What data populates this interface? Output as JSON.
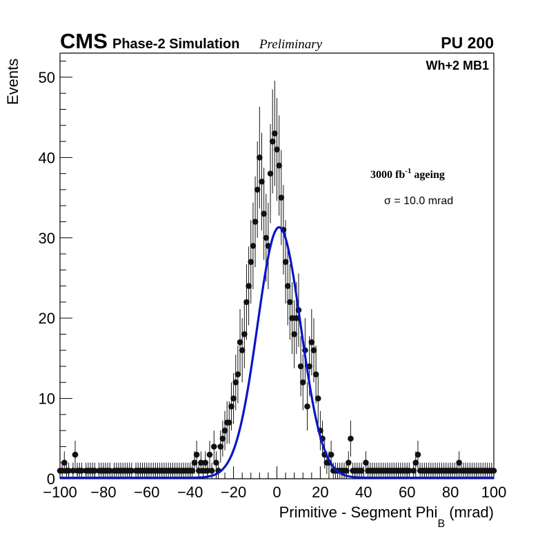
{
  "header": {
    "cms": "CMS",
    "subtitle": "Phase-2 Simulation",
    "preliminary": "Preliminary",
    "pileup": "PU 200",
    "chamber": "Wh+2 MB1"
  },
  "annotation": {
    "ageing_prefix": "3000 fb",
    "ageing_sup": "-1",
    "ageing_suffix": " ageing",
    "sigma_symbol": "σ",
    "sigma_text": " = 10.0 mrad"
  },
  "colors": {
    "fit": "#0a14c8",
    "marker": "#111111",
    "axis": "#000000"
  },
  "chart_data": {
    "type": "scatter",
    "title": "",
    "xlabel_main": "Primitive - Segment Phi",
    "xlabel_sub": "B",
    "xlabel_unit": " (mrad)",
    "ylabel": "Events",
    "xlim": [
      -100,
      100
    ],
    "ylim": [
      0,
      53
    ],
    "xticks": [
      -100,
      -80,
      -60,
      -40,
      -20,
      0,
      20,
      40,
      60,
      80,
      100
    ],
    "xtick_labels": [
      "−100",
      "−80",
      "−60",
      "−40",
      "−20",
      "0",
      "20",
      "40",
      "60",
      "80",
      "100"
    ],
    "yticks": [
      0,
      10,
      20,
      30,
      40,
      50
    ],
    "ytick_labels": [
      "0",
      "10",
      "20",
      "30",
      "40",
      "50"
    ],
    "bin_width": 1,
    "x": [
      -100,
      -99,
      -98,
      -97,
      -96,
      -95,
      -94,
      -93,
      -92,
      -91,
      -90,
      -89,
      -88,
      -87,
      -86,
      -85,
      -84,
      -83,
      -82,
      -81,
      -80,
      -79,
      -78,
      -77,
      -76,
      -75,
      -74,
      -73,
      -72,
      -71,
      -70,
      -69,
      -68,
      -67,
      -66,
      -65,
      -64,
      -63,
      -62,
      -61,
      -60,
      -59,
      -58,
      -57,
      -56,
      -55,
      -54,
      -53,
      -52,
      -51,
      -50,
      -49,
      -48,
      -47,
      -46,
      -45,
      -44,
      -43,
      -42,
      -41,
      -40,
      -39,
      -38,
      -37,
      -36,
      -35,
      -34,
      -33,
      -32,
      -31,
      -30,
      -29,
      -28,
      -27,
      -26,
      -25,
      -24,
      -23,
      -22,
      -21,
      -20,
      -19,
      -18,
      -17,
      -16,
      -15,
      -14,
      -13,
      -12,
      -11,
      -10,
      -9,
      -8,
      -7,
      -6,
      -5,
      -4,
      -3,
      -2,
      -1,
      0,
      1,
      2,
      3,
      4,
      5,
      6,
      7,
      8,
      9,
      10,
      11,
      12,
      13,
      14,
      15,
      16,
      17,
      18,
      19,
      20,
      21,
      22,
      23,
      24,
      25,
      26,
      27,
      28,
      29,
      30,
      31,
      32,
      33,
      34,
      35,
      36,
      37,
      38,
      39,
      40,
      41,
      42,
      43,
      44,
      45,
      46,
      47,
      48,
      49,
      50,
      51,
      52,
      53,
      54,
      55,
      56,
      57,
      58,
      59,
      60,
      61,
      62,
      63,
      64,
      65,
      66,
      67,
      68,
      69,
      70,
      71,
      72,
      73,
      74,
      75,
      76,
      77,
      78,
      79,
      80,
      81,
      82,
      83,
      84,
      85,
      86,
      87,
      88,
      89,
      90,
      91,
      92,
      93,
      94,
      95,
      96,
      97,
      98,
      99,
      100
    ],
    "y": [
      1,
      1,
      2,
      1,
      1,
      0,
      1,
      3,
      1,
      1,
      1,
      0,
      1,
      1,
      1,
      1,
      1,
      0,
      1,
      1,
      1,
      1,
      1,
      1,
      0,
      1,
      1,
      1,
      1,
      1,
      1,
      1,
      1,
      1,
      0,
      1,
      1,
      1,
      1,
      1,
      1,
      1,
      1,
      1,
      1,
      1,
      1,
      1,
      1,
      1,
      1,
      1,
      1,
      1,
      1,
      1,
      1,
      1,
      1,
      1,
      1,
      1,
      2,
      3,
      1,
      2,
      1,
      2,
      1,
      3,
      1,
      4,
      2,
      1,
      4,
      5,
      6,
      7,
      7,
      9,
      10,
      12,
      13,
      17,
      16,
      18,
      22,
      24,
      27,
      29,
      32,
      36,
      40,
      37,
      33,
      30,
      29,
      38,
      42,
      43,
      41,
      39,
      35,
      31,
      27,
      24,
      22,
      20,
      18,
      20,
      21,
      14,
      12,
      16,
      9,
      14,
      17,
      16,
      13,
      10,
      6,
      5,
      3,
      2,
      2,
      3,
      1,
      1,
      1,
      1,
      1,
      1,
      1,
      2,
      5,
      1,
      1,
      1,
      1,
      1,
      0,
      2,
      1,
      1,
      1,
      1,
      1,
      1,
      1,
      1,
      1,
      1,
      1,
      1,
      1,
      1,
      1,
      1,
      1,
      1,
      1,
      1,
      0,
      1,
      2,
      3,
      1,
      1,
      1,
      1,
      1,
      1,
      1,
      1,
      1,
      1,
      1,
      1,
      1,
      1,
      1,
      1,
      1,
      1,
      2,
      1,
      1,
      1,
      1,
      1,
      1,
      1,
      1,
      1,
      1,
      1,
      1,
      1,
      1,
      1,
      1
    ],
    "fit": {
      "type": "gaussian",
      "amplitude": 31.2,
      "mean": 1.0,
      "sigma": 10.0,
      "name": "Gaussian fit"
    }
  }
}
